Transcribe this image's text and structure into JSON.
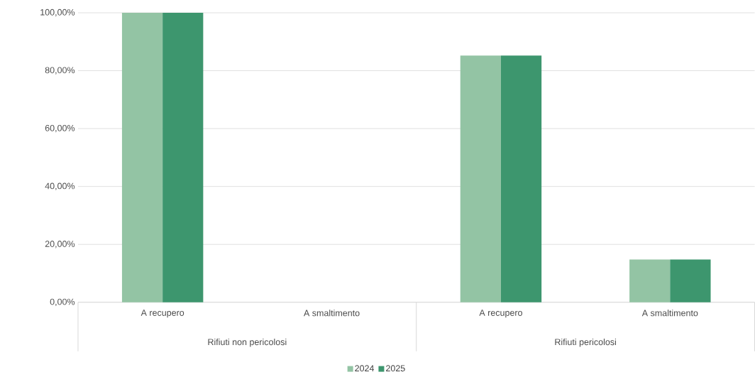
{
  "chart_data": {
    "type": "bar",
    "categories": [
      "A recupero",
      "A smaltimento",
      "A recupero",
      "A smaltimento"
    ],
    "series": [
      {
        "name": "2024",
        "color": "#93c4a4",
        "values": [
          100,
          0,
          85.2,
          14.8
        ]
      },
      {
        "name": "2025",
        "color": "#3d966e",
        "values": [
          100,
          0,
          85.2,
          14.8
        ]
      }
    ],
    "ylim": [
      0,
      100
    ],
    "yticks": [
      {
        "value": 0,
        "label": "0,00%"
      },
      {
        "value": 20,
        "label": "20,00%"
      },
      {
        "value": 40,
        "label": "40,00%"
      },
      {
        "value": 60,
        "label": "60,00%"
      },
      {
        "value": 80,
        "label": "80,00%"
      },
      {
        "value": 100,
        "label": "100,00%"
      }
    ],
    "annotations": [
      "Rifiuti non pericolosi",
      "Rifiuti pericolosi"
    ],
    "grid": "y",
    "legend": "bottom"
  }
}
